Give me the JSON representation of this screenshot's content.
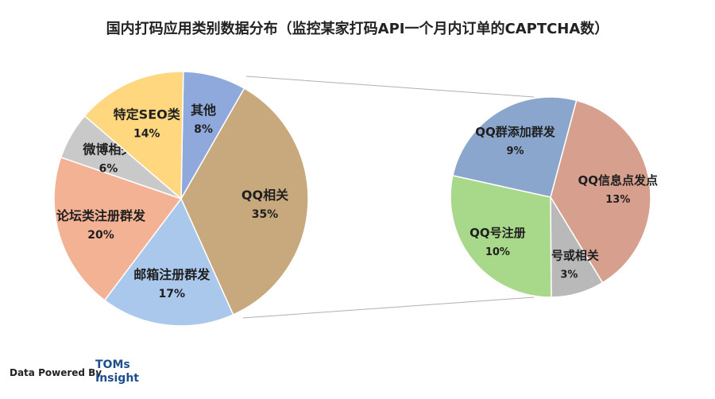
{
  "chart_data": {
    "type": "pie",
    "title": "国内打码应用类别数据分布（监控某家打码API一个月内订单的CAPTCHA数）",
    "main_pie": {
      "slices": [
        {
          "label": "其他",
          "value": 8,
          "display": "8%",
          "color": "#8fa9dc"
        },
        {
          "label": "QQ相关",
          "value": 35,
          "display": "35%",
          "color": "#c8a97e"
        },
        {
          "label": "邮箱注册群发",
          "value": 17,
          "display": "17%",
          "color": "#a9c8ec"
        },
        {
          "label": "论坛类注册群发",
          "value": 20,
          "display": "20%",
          "color": "#f4b295"
        },
        {
          "label": "微博相关",
          "value": 6,
          "display": "6%",
          "color": "#c9c9c9"
        },
        {
          "label": "特定SEO类",
          "value": 14,
          "display": "14%",
          "color": "#ffd77f"
        }
      ]
    },
    "sub_pie": {
      "slices": [
        {
          "label": "QQ信息点发点",
          "value": 13,
          "display": "13%",
          "color": "#d7a08e"
        },
        {
          "label": "洗号或相关",
          "value": 3,
          "display": "3%",
          "color": "#b9b9b9"
        },
        {
          "label": "QQ号注册",
          "value": 10,
          "display": "10%",
          "color": "#a8d88a"
        },
        {
          "label": "QQ群添加群发",
          "value": 9,
          "display": "9%",
          "color": "#8aa6cc"
        }
      ]
    }
  },
  "footer": {
    "credit": "Data Powered By",
    "brand_line1": "TOMs",
    "brand_line2": "Insight"
  }
}
